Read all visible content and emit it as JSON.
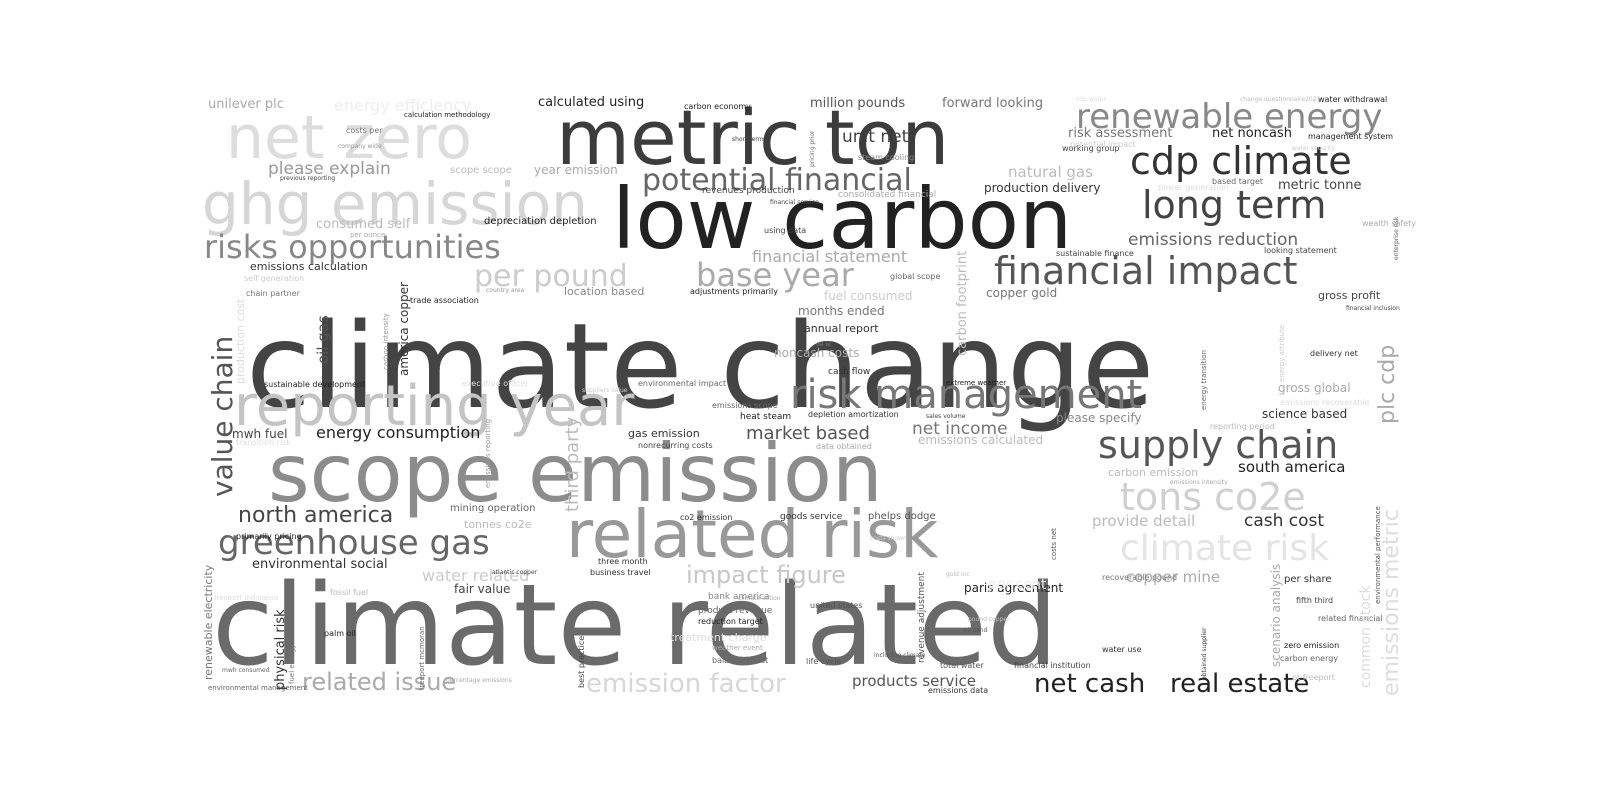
{
  "words": [
    {
      "text": "climate change",
      "color": "#444444"
    },
    {
      "text": "climate related",
      "color": "#6a6a6a"
    },
    {
      "text": "scope emission",
      "color": "#8c8c8c"
    },
    {
      "text": "low carbon",
      "color": "#222222"
    },
    {
      "text": "metric ton",
      "color": "#3c3c3c"
    },
    {
      "text": "related risk",
      "color": "#999999"
    },
    {
      "text": "reporting year",
      "color": "#c4c4c4"
    },
    {
      "text": "net zero",
      "color": "#dddddd"
    },
    {
      "text": "ghg emission",
      "color": "#d6d6d6"
    },
    {
      "text": "risk management",
      "color": "#777777"
    },
    {
      "text": "supply chain",
      "color": "#555555"
    },
    {
      "text": "financial impact",
      "color": "#555555"
    },
    {
      "text": "cdp climate",
      "color": "#333333"
    },
    {
      "text": "long term",
      "color": "#444444"
    },
    {
      "text": "renewable energy",
      "color": "#888888"
    },
    {
      "text": "potential financial",
      "color": "#666666"
    },
    {
      "text": "risks opportunities",
      "color": "#888888"
    },
    {
      "text": "base year",
      "color": "#aaaaaa"
    },
    {
      "text": "per pound",
      "color": "#cccccc"
    },
    {
      "text": "value chain",
      "color": "#555555"
    },
    {
      "text": "greenhouse gas",
      "color": "#666666"
    },
    {
      "text": "tons co2e",
      "color": "#d0d0d0"
    },
    {
      "text": "climate risk",
      "color": "#e4e4e4"
    },
    {
      "text": "emissions metric",
      "color": "#dddddd"
    },
    {
      "text": "impact figure",
      "color": "#c8c8c8"
    },
    {
      "text": "emission factor",
      "color": "#d6d6d6"
    },
    {
      "text": "north america",
      "color": "#444444"
    },
    {
      "text": "related issue",
      "color": "#aaaaaa"
    },
    {
      "text": "net cash",
      "color": "#222222"
    },
    {
      "text": "real estate",
      "color": "#222222"
    },
    {
      "text": "unit net",
      "color": "#444444"
    },
    {
      "text": "please explain",
      "color": "#999999"
    },
    {
      "text": "financial statement",
      "color": "#aaaaaa"
    },
    {
      "text": "emissions reduction",
      "color": "#666666"
    },
    {
      "text": "energy consumption",
      "color": "#222222"
    },
    {
      "text": "market based",
      "color": "#555555"
    },
    {
      "text": "net income",
      "color": "#777777"
    },
    {
      "text": "third party",
      "color": "#bbbbbb"
    },
    {
      "text": "plc cdp",
      "color": "#aaaaaa"
    },
    {
      "text": "provide detail",
      "color": "#bbbbbb"
    },
    {
      "text": "cash cost",
      "color": "#333333"
    },
    {
      "text": "copper mine",
      "color": "#aaaaaa"
    },
    {
      "text": "south america",
      "color": "#222222"
    },
    {
      "text": "environmental social",
      "color": "#333333"
    },
    {
      "text": "water related",
      "color": "#cccccc"
    },
    {
      "text": "natural gas",
      "color": "#bbbbbb"
    },
    {
      "text": "calculated using",
      "color": "#222222"
    },
    {
      "text": "million pounds",
      "color": "#555555"
    },
    {
      "text": "forward looking",
      "color": "#777777"
    },
    {
      "text": "unilever plc",
      "color": "#aaaaaa"
    },
    {
      "text": "energy efficiency",
      "color": "#eeeeee"
    },
    {
      "text": "risk assessment",
      "color": "#777777"
    },
    {
      "text": "net noncash",
      "color": "#222222"
    },
    {
      "text": "metric tonne",
      "color": "#444444"
    },
    {
      "text": "production delivery",
      "color": "#333333"
    },
    {
      "text": "months ended",
      "color": "#777777"
    },
    {
      "text": "noncash costs",
      "color": "#aaaaaa"
    },
    {
      "text": "annual report",
      "color": "#333333"
    },
    {
      "text": "fuel consumed",
      "color": "#cccccc"
    },
    {
      "text": "copper gold",
      "color": "#777777"
    },
    {
      "text": "carbon footprint",
      "color": "#bbbbbb"
    },
    {
      "text": "oil gas",
      "color": "#555555"
    },
    {
      "text": "america copper",
      "color": "#333333"
    },
    {
      "text": "location based",
      "color": "#888888"
    },
    {
      "text": "consumed self",
      "color": "#bbbbbb"
    },
    {
      "text": "year emission",
      "color": "#aaaaaa"
    },
    {
      "text": "scope scope",
      "color": "#bbbbbb"
    },
    {
      "text": "depreciation depletion",
      "color": "#222222"
    },
    {
      "text": "gross profit",
      "color": "#444444"
    },
    {
      "text": "gross global",
      "color": "#aaaaaa"
    },
    {
      "text": "science based",
      "color": "#333333"
    },
    {
      "text": "please specify",
      "color": "#888888"
    },
    {
      "text": "emissions calculated",
      "color": "#bbbbbb"
    },
    {
      "text": "carbon emission",
      "color": "#bbbbbb"
    },
    {
      "text": "gas emission",
      "color": "#333333"
    },
    {
      "text": "mwh fuel",
      "color": "#444444"
    },
    {
      "text": "mining operation",
      "color": "#666666"
    },
    {
      "text": "tonnes co2e",
      "color": "#bbbbbb"
    },
    {
      "text": "fair value",
      "color": "#444444"
    },
    {
      "text": "paris agreement",
      "color": "#222222"
    },
    {
      "text": "products service",
      "color": "#555555"
    },
    {
      "text": "per share",
      "color": "#333333"
    },
    {
      "text": "common stock",
      "color": "#dddddd"
    },
    {
      "text": "scenario analysis",
      "color": "#aaaaaa"
    },
    {
      "text": "physical risk",
      "color": "#333333"
    },
    {
      "text": "renewable electricity",
      "color": "#777777"
    },
    {
      "text": "production cost",
      "color": "#dddddd"
    },
    {
      "text": "revenue adjustment",
      "color": "#555555"
    },
    {
      "text": "heat steam",
      "color": "#222222"
    },
    {
      "text": "cash flow",
      "color": "#333333"
    },
    {
      "text": "delivery net",
      "color": "#333333"
    },
    {
      "text": "depletion amortization",
      "color": "#333333"
    },
    {
      "text": "three month",
      "color": "#333333"
    },
    {
      "text": "business travel",
      "color": "#333333"
    },
    {
      "text": "bank america",
      "color": "#888888"
    },
    {
      "text": "product revenue",
      "color": "#666666"
    },
    {
      "text": "reduction target",
      "color": "#222222"
    },
    {
      "text": "treatment charge",
      "color": "#dddddd"
    },
    {
      "text": "balance sheet",
      "color": "#666666"
    },
    {
      "text": "life cycle",
      "color": "#555555"
    },
    {
      "text": "total water",
      "color": "#555555"
    },
    {
      "text": "financial institution",
      "color": "#444444"
    },
    {
      "text": "emissions data",
      "color": "#333333"
    },
    {
      "text": "fifth third",
      "color": "#444444"
    },
    {
      "text": "zero emission",
      "color": "#222222"
    },
    {
      "text": "carbon energy",
      "color": "#666666"
    },
    {
      "text": "pt freeport",
      "color": "#bbbbbb"
    },
    {
      "text": "goods service",
      "color": "#333333"
    },
    {
      "text": "phelps dodge",
      "color": "#555555"
    },
    {
      "text": "co2 emission",
      "color": "#333333"
    },
    {
      "text": "united states",
      "color": "#555555"
    },
    {
      "text": "per cent",
      "color": "#eeeeee"
    },
    {
      "text": "palm oil",
      "color": "#222222"
    },
    {
      "text": "fossil fuel",
      "color": "#bbbbbb"
    },
    {
      "text": "primarily pricing",
      "color": "#222222"
    },
    {
      "text": "sustainable development",
      "color": "#222222"
    },
    {
      "text": "trade association",
      "color": "#222222"
    },
    {
      "text": "environmental impact",
      "color": "#666666"
    },
    {
      "text": "emissions scope",
      "color": "#666666"
    },
    {
      "text": "nonrecurring costs",
      "color": "#444444"
    },
    {
      "text": "data obtained",
      "color": "#aaaaaa"
    },
    {
      "text": "adjustments primarily",
      "color": "#222222"
    },
    {
      "text": "global scope",
      "color": "#666666"
    },
    {
      "text": "using data",
      "color": "#444444"
    },
    {
      "text": "revenues production",
      "color": "#444444"
    },
    {
      "text": "consolidated financial",
      "color": "#aaaaaa"
    },
    {
      "text": "steam cooling",
      "color": "#888888"
    },
    {
      "text": "working group",
      "color": "#444444"
    },
    {
      "text": "sustainable finance",
      "color": "#444444"
    },
    {
      "text": "looking statement",
      "color": "#444444"
    },
    {
      "text": "based target",
      "color": "#666666"
    },
    {
      "text": "power generation",
      "color": "#dddddd"
    },
    {
      "text": "management system",
      "color": "#222222"
    },
    {
      "text": "water withdrawal",
      "color": "#222222"
    },
    {
      "text": "carbon economy",
      "color": "#222222"
    },
    {
      "text": "calculation methodology",
      "color": "#222222"
    },
    {
      "text": "costs per",
      "color": "#777777"
    },
    {
      "text": "company wide",
      "color": "#999999"
    },
    {
      "text": "previous reporting",
      "color": "#444444"
    },
    {
      "text": "short term",
      "color": "#444444"
    },
    {
      "text": "pricing prior",
      "color": "#777777"
    },
    {
      "text": "financial service",
      "color": "#444444"
    },
    {
      "text": "per ounce",
      "color": "#aaaaaa"
    },
    {
      "text": "emissions calculation",
      "color": "#333333"
    },
    {
      "text": "self generation",
      "color": "#cccccc"
    },
    {
      "text": "chain partner",
      "color": "#777777"
    },
    {
      "text": "country area",
      "color": "#999999"
    },
    {
      "text": "carbon intensity",
      "color": "#999999"
    },
    {
      "text": "executive officer",
      "color": "#dddddd"
    },
    {
      "text": "suppliers value",
      "color": "#cccccc"
    },
    {
      "text": "sales volume",
      "color": "#444444"
    },
    {
      "text": "extreme weather",
      "color": "#222222"
    },
    {
      "text": "emissions recoverable",
      "color": "#dddddd"
    },
    {
      "text": "reporting period",
      "color": "#bbbbbb"
    },
    {
      "text": "energy attribute",
      "color": "#cccccc"
    },
    {
      "text": "energy transition",
      "color": "#666666"
    },
    {
      "text": "financial inclusion",
      "color": "#444444"
    },
    {
      "text": "enterprise risk",
      "color": "#666666"
    },
    {
      "text": "wealth safety",
      "color": "#aaaaaa"
    },
    {
      "text": "transition risk",
      "color": "#dddddd"
    },
    {
      "text": "emissions reporting",
      "color": "#999999"
    },
    {
      "text": "costs net",
      "color": "#555555"
    },
    {
      "text": "emissions intensity",
      "color": "#aaaaaa"
    },
    {
      "text": "environmental performance",
      "color": "#555555"
    },
    {
      "text": "obtained supplier",
      "color": "#444444"
    },
    {
      "text": "related financial",
      "color": "#666666"
    },
    {
      "text": "freeport indonesia",
      "color": "#dddddd"
    },
    {
      "text": "fuel energy",
      "color": "#777777"
    },
    {
      "text": "freeport mcmoran",
      "color": "#666666"
    },
    {
      "text": "percentage emissions",
      "color": "#aaaaaa"
    },
    {
      "text": "environmental management",
      "color": "#666666"
    },
    {
      "text": "best practice",
      "color": "#444444"
    },
    {
      "text": "atlantic copper",
      "color": "#444444"
    },
    {
      "text": "costs shown",
      "color": "#cccccc"
    },
    {
      "text": "gold inc",
      "color": "#bbbbbb"
    },
    {
      "text": "recoverable pound",
      "color": "#777777"
    },
    {
      "text": "climate action",
      "color": "#aaaaaa"
    },
    {
      "text": "weather event",
      "color": "#aaaaaa"
    },
    {
      "text": "pound copper",
      "color": "#bbbbbb"
    },
    {
      "text": "oil sand",
      "color": "#555555"
    },
    {
      "text": "including climate",
      "color": "#555555"
    },
    {
      "text": "water use",
      "color": "#333333"
    },
    {
      "text": "de la",
      "color": "#777777"
    },
    {
      "text": "cdp water",
      "color": "#dddddd"
    },
    {
      "text": "change questionnaire2021",
      "color": "#bbbbbb"
    },
    {
      "text": "potential impact",
      "color": "#cccccc"
    },
    {
      "text": "water security",
      "color": "#cccccc"
    },
    {
      "text": "mwh consumed",
      "color": "#666666"
    },
    {
      "text": "scope market",
      "color": "#cccccc"
    }
  ]
}
